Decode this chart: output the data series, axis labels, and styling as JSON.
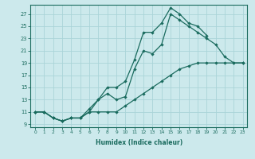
{
  "xlabel": "Humidex (Indice chaleur)",
  "bg_color": "#cce9ec",
  "grid_color": "#aad4d8",
  "line_color": "#1a6b5e",
  "xlim": [
    -0.5,
    23.5
  ],
  "ylim": [
    8.5,
    28.5
  ],
  "yticks": [
    9,
    11,
    13,
    15,
    17,
    19,
    21,
    23,
    25,
    27
  ],
  "xticks": [
    0,
    1,
    2,
    3,
    4,
    5,
    6,
    7,
    8,
    9,
    10,
    11,
    12,
    13,
    14,
    15,
    16,
    17,
    18,
    19,
    20,
    21,
    22,
    23
  ],
  "line1_x": [
    0,
    1,
    2,
    3,
    4,
    5,
    6,
    7,
    8,
    9,
    10,
    11,
    12,
    13,
    14,
    15,
    16,
    17,
    18,
    19
  ],
  "line1_y": [
    11,
    11,
    10,
    9.5,
    10,
    10,
    11.5,
    13,
    15,
    15,
    16,
    19.5,
    24,
    24,
    25.5,
    28,
    27,
    25.5,
    25,
    23.5
  ],
  "line2_x": [
    0,
    1,
    2,
    3,
    4,
    5,
    6,
    7,
    8,
    9,
    10,
    11,
    12,
    13,
    14,
    15,
    16,
    17,
    18,
    19,
    20,
    21,
    22,
    23
  ],
  "line2_y": [
    11,
    11,
    10,
    9.5,
    10,
    10,
    11,
    13,
    14,
    13,
    13.5,
    18,
    21,
    20.5,
    22,
    27,
    26,
    25,
    24,
    23,
    22,
    20,
    19,
    19
  ],
  "line3_x": [
    0,
    1,
    2,
    3,
    4,
    5,
    6,
    7,
    8,
    9,
    10,
    11,
    12,
    13,
    14,
    15,
    16,
    17,
    18,
    19,
    20,
    21,
    22,
    23
  ],
  "line3_y": [
    11,
    11,
    10,
    9.5,
    10,
    10,
    11,
    11,
    11,
    11,
    12,
    13,
    14,
    15,
    16,
    17,
    18,
    18.5,
    19,
    19,
    19,
    19,
    19,
    19
  ]
}
